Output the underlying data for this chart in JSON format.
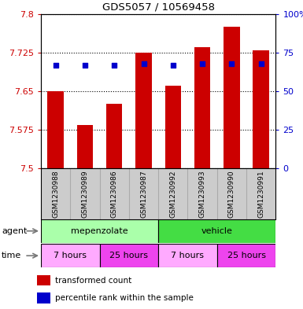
{
  "title": "GDS5057 / 10569458",
  "samples": [
    "GSM1230988",
    "GSM1230989",
    "GSM1230986",
    "GSM1230987",
    "GSM1230992",
    "GSM1230993",
    "GSM1230990",
    "GSM1230991"
  ],
  "bar_values": [
    7.65,
    7.585,
    7.625,
    7.725,
    7.66,
    7.735,
    7.775,
    7.73
  ],
  "percentile_values": [
    67,
    67,
    67,
    68,
    67,
    68,
    68,
    68
  ],
  "bar_bottom": 7.5,
  "ymin": 7.5,
  "ymax": 7.8,
  "yticks": [
    7.5,
    7.575,
    7.65,
    7.725,
    7.8
  ],
  "ytick_labels": [
    "7.5",
    "7.575",
    "7.65",
    "7.725",
    "7.8"
  ],
  "y2min": 0,
  "y2max": 100,
  "y2ticks": [
    0,
    25,
    50,
    75,
    100
  ],
  "y2tick_labels": [
    "0",
    "25",
    "50",
    "75",
    "100%"
  ],
  "bar_color": "#cc0000",
  "percentile_color": "#0000cc",
  "grid_color": "#000000",
  "agent_groups": [
    {
      "label": "mepenzolate",
      "start": 0,
      "end": 4,
      "color": "#aaffaa"
    },
    {
      "label": "vehicle",
      "start": 4,
      "end": 8,
      "color": "#44dd44"
    }
  ],
  "time_groups": [
    {
      "label": "7 hours",
      "start": 0,
      "end": 2,
      "color": "#ffaaff"
    },
    {
      "label": "25 hours",
      "start": 2,
      "end": 4,
      "color": "#ee44ee"
    },
    {
      "label": "7 hours",
      "start": 4,
      "end": 6,
      "color": "#ffaaff"
    },
    {
      "label": "25 hours",
      "start": 6,
      "end": 8,
      "color": "#ee44ee"
    }
  ],
  "legend_items": [
    {
      "label": "transformed count",
      "color": "#cc0000"
    },
    {
      "label": "percentile rank within the sample",
      "color": "#0000cc"
    }
  ],
  "xlabel_agent": "agent",
  "xlabel_time": "time",
  "bar_width": 0.55,
  "sample_bg_color": "#cccccc",
  "sample_divider_color": "#aaaaaa"
}
